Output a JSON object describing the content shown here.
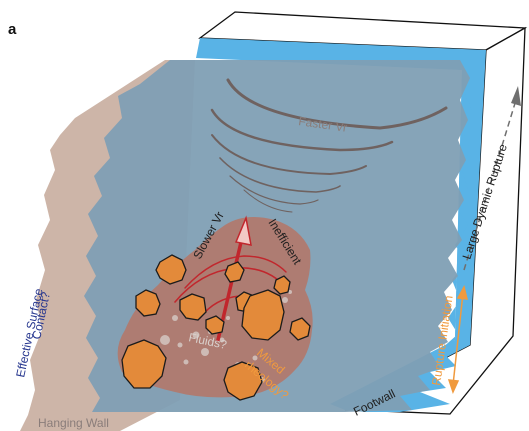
{
  "panel_label": "a",
  "labels": {
    "faster_vr": "Faster Vr",
    "slower_vr": "Slower Vr",
    "inefficient": "Inefficient",
    "fluids": "Fluids?",
    "mixed_rheology_line1": "Mixed",
    "mixed_rheology_line2": "rheology?",
    "effective_surface_line1": "Effective Surface",
    "effective_surface_line2": "Contact?",
    "hanging_wall": "Hanging Wall",
    "footwall": "Footwall",
    "rupture_initiation": "Rupture Initiation",
    "large_dynamic_rupture": "Large Dyamic Rupture"
  },
  "colors": {
    "fault_plane": "#7f9fb4",
    "blue_edge": "#59b3e6",
    "hanging_wall": "#cdb5a8",
    "rough_patch": "#b3786a",
    "asperity": "#e38a3a",
    "rupture_arrow": "#c1272d",
    "wavefront": "#6f6260",
    "text_blue": "#27378f",
    "text_orange": "#f09a3e",
    "text_grey": "#8a7d7a"
  }
}
